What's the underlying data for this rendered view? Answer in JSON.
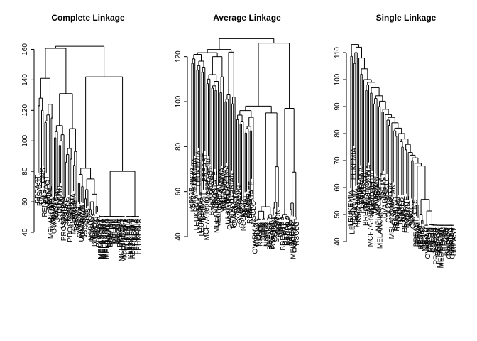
{
  "chart_data": [
    {
      "type": "dendrogram",
      "title": "Complete Linkage",
      "ylim": [
        40,
        170
      ],
      "yticks": [
        40,
        60,
        80,
        100,
        120,
        140,
        160
      ],
      "root_height": 162,
      "merge_heights": [
        162,
        142,
        141,
        131,
        128,
        124,
        123,
        120,
        117,
        115,
        113,
        112,
        110,
        108,
        106,
        104,
        102,
        100,
        97,
        95,
        93,
        91,
        88,
        86,
        84,
        82,
        80,
        78,
        75,
        72,
        70,
        68,
        65,
        62,
        60,
        57,
        55,
        52,
        50,
        48
      ],
      "leaf_labels": [
        "BREAST",
        "BREAST",
        "CNS",
        "CNS",
        "RENAL",
        "BREAST",
        "NSCLC",
        "RENAL",
        "MELANOMA",
        "OVARIAN",
        "OVARIAN",
        "NSCLC",
        "OVARIAN",
        "COLON",
        "COLON",
        "OVARIAN",
        "PROSTATE",
        "NSCLC",
        "NSCLC",
        "NSCLC",
        "PROSTATE",
        "NSCLC",
        "MELANOMA",
        "RENAL",
        "RENAL",
        "RENAL",
        "OVARIAN",
        "UNKNOWN",
        "OVARIAN",
        "NSCLC",
        "CNS",
        "CNS",
        "CNS",
        "NSCLC",
        "RENAL",
        "BREAST",
        "NSCLC",
        "RENAL",
        "BREAST",
        "MELANOMA",
        "MELANOMA",
        "MELANOMA",
        "MELANOMA",
        "MELANOMA",
        "BREAST",
        "BREAST",
        "COLON",
        "COLON",
        "COLON",
        "COLON",
        "COLON",
        "BREAST",
        "MCF7A-repro",
        "BREAST",
        "MCF7D-repro",
        "LEUKEMIA",
        "LEUKEMIA",
        "LEUKEMIA",
        "K562B-repro",
        "K562A-repro",
        "LEUKEMIA",
        "LEUKEMIA",
        "NSCLC",
        "LEUKEMIA"
      ]
    },
    {
      "type": "dendrogram",
      "title": "Average Linkage",
      "ylim": [
        40,
        130
      ],
      "yticks": [
        40,
        60,
        80,
        100,
        120
      ],
      "root_height": 128,
      "merge_heights": [
        128,
        126,
        124,
        122,
        121,
        120,
        119,
        118,
        117,
        116,
        115,
        114,
        113,
        112,
        111,
        110,
        109,
        108,
        107,
        106,
        105,
        104,
        103,
        102,
        101,
        100,
        99,
        98,
        97,
        96,
        95,
        94,
        93,
        92,
        91,
        90,
        89,
        88,
        87,
        86
      ],
      "leaf_labels": [
        "K562B-repro",
        "K562A-repro",
        "LEUKEMIA",
        "LEUKEMIA",
        "LEUKEMIA",
        "LEUKEMIA",
        "LEUKEMIA",
        "BREAST",
        "BREAST",
        "MCF7A-repro",
        "MCF7D-repro",
        "BREAST",
        "BREAST",
        "NSCLC",
        "PROSTATE",
        "MELANOMA",
        "MELANOMA",
        "COLON",
        "MELANOMA",
        "MELANOMA",
        "MELANOMA",
        "MELANOMA",
        "UNKNOWN",
        "OVARIAN",
        "OVARIAN",
        "RENAL",
        "OVARIAN",
        "NSCLC",
        "COLON",
        "OVARIAN",
        "COLON",
        "NSCLC",
        "RENAL",
        "RENAL",
        "RENAL",
        "RENAL",
        "PROSTATE",
        "NSCLC",
        "OVARIAN",
        "NSCLC",
        "RENAL",
        "NSCLC",
        "CNS",
        "CNS",
        "CNS",
        "NSCLC",
        "NSCLC",
        "BREAST",
        "BREAST",
        "OVARIAN",
        "COLON",
        "COLON",
        "COLON",
        "CNS",
        "CNS",
        "BREAST",
        "RENAL",
        "RENAL",
        "NSCLC",
        "COLON",
        "BREAST",
        "MELANOMA",
        "OVARIAN",
        "NSCLC"
      ]
    },
    {
      "type": "dendrogram",
      "title": "Single Linkage",
      "ylim": [
        40,
        115
      ],
      "yticks": [
        40,
        50,
        60,
        70,
        80,
        90,
        100,
        110
      ],
      "root_height": 113,
      "merge_heights": [
        113,
        112,
        110,
        108,
        106,
        104,
        102,
        100,
        99,
        98,
        97,
        96,
        95,
        94,
        93,
        92,
        91,
        90,
        89,
        88,
        87,
        86,
        85,
        84,
        83,
        82,
        81,
        80,
        79,
        78,
        77,
        76,
        75,
        74,
        73,
        72,
        71,
        70,
        69,
        68
      ],
      "leaf_labels": [
        "LEUKEMIA",
        "LEUKEMIA",
        "LEUKEMIA",
        "LEUKEMIA",
        "K562B-repro",
        "K562A-repro",
        "LEUKEMIA",
        "LEUKEMIA",
        "BREAST",
        "BREAST",
        "MELANOMA",
        "MELANOMA",
        "MCF7A-repro",
        "MCF7D-repro",
        "BREAST",
        "UNKNOWN",
        "OVARIAN",
        "MELANOMA",
        "MELANOMA",
        "NSCLC",
        "BREAST",
        "OVARIAN",
        "NSCLC",
        "COLON",
        "COLON",
        "MELANOMA",
        "OVARIAN",
        "RENAL",
        "RENAL",
        "OVARIAN",
        "NSCLC",
        "NSCLC",
        "NSCLC",
        "RENAL",
        "PROSTATE",
        "COLON",
        "CNS",
        "NSCLC",
        "CNS",
        "CNS",
        "BREAST",
        "RENAL",
        "RENAL",
        "RENAL",
        "RENAL",
        "NSCLC",
        "NSCLC",
        "OVARIAN",
        "COLON",
        "COLON",
        "COLON",
        "COLON",
        "PROSTATE",
        "BREAST",
        "MELANOMA",
        "MELANOMA",
        "RENAL",
        "CNS",
        "CNS",
        "BREAST",
        "OVARIAN",
        "NSCLC",
        "OVARIAN",
        "BREAST"
      ]
    }
  ]
}
